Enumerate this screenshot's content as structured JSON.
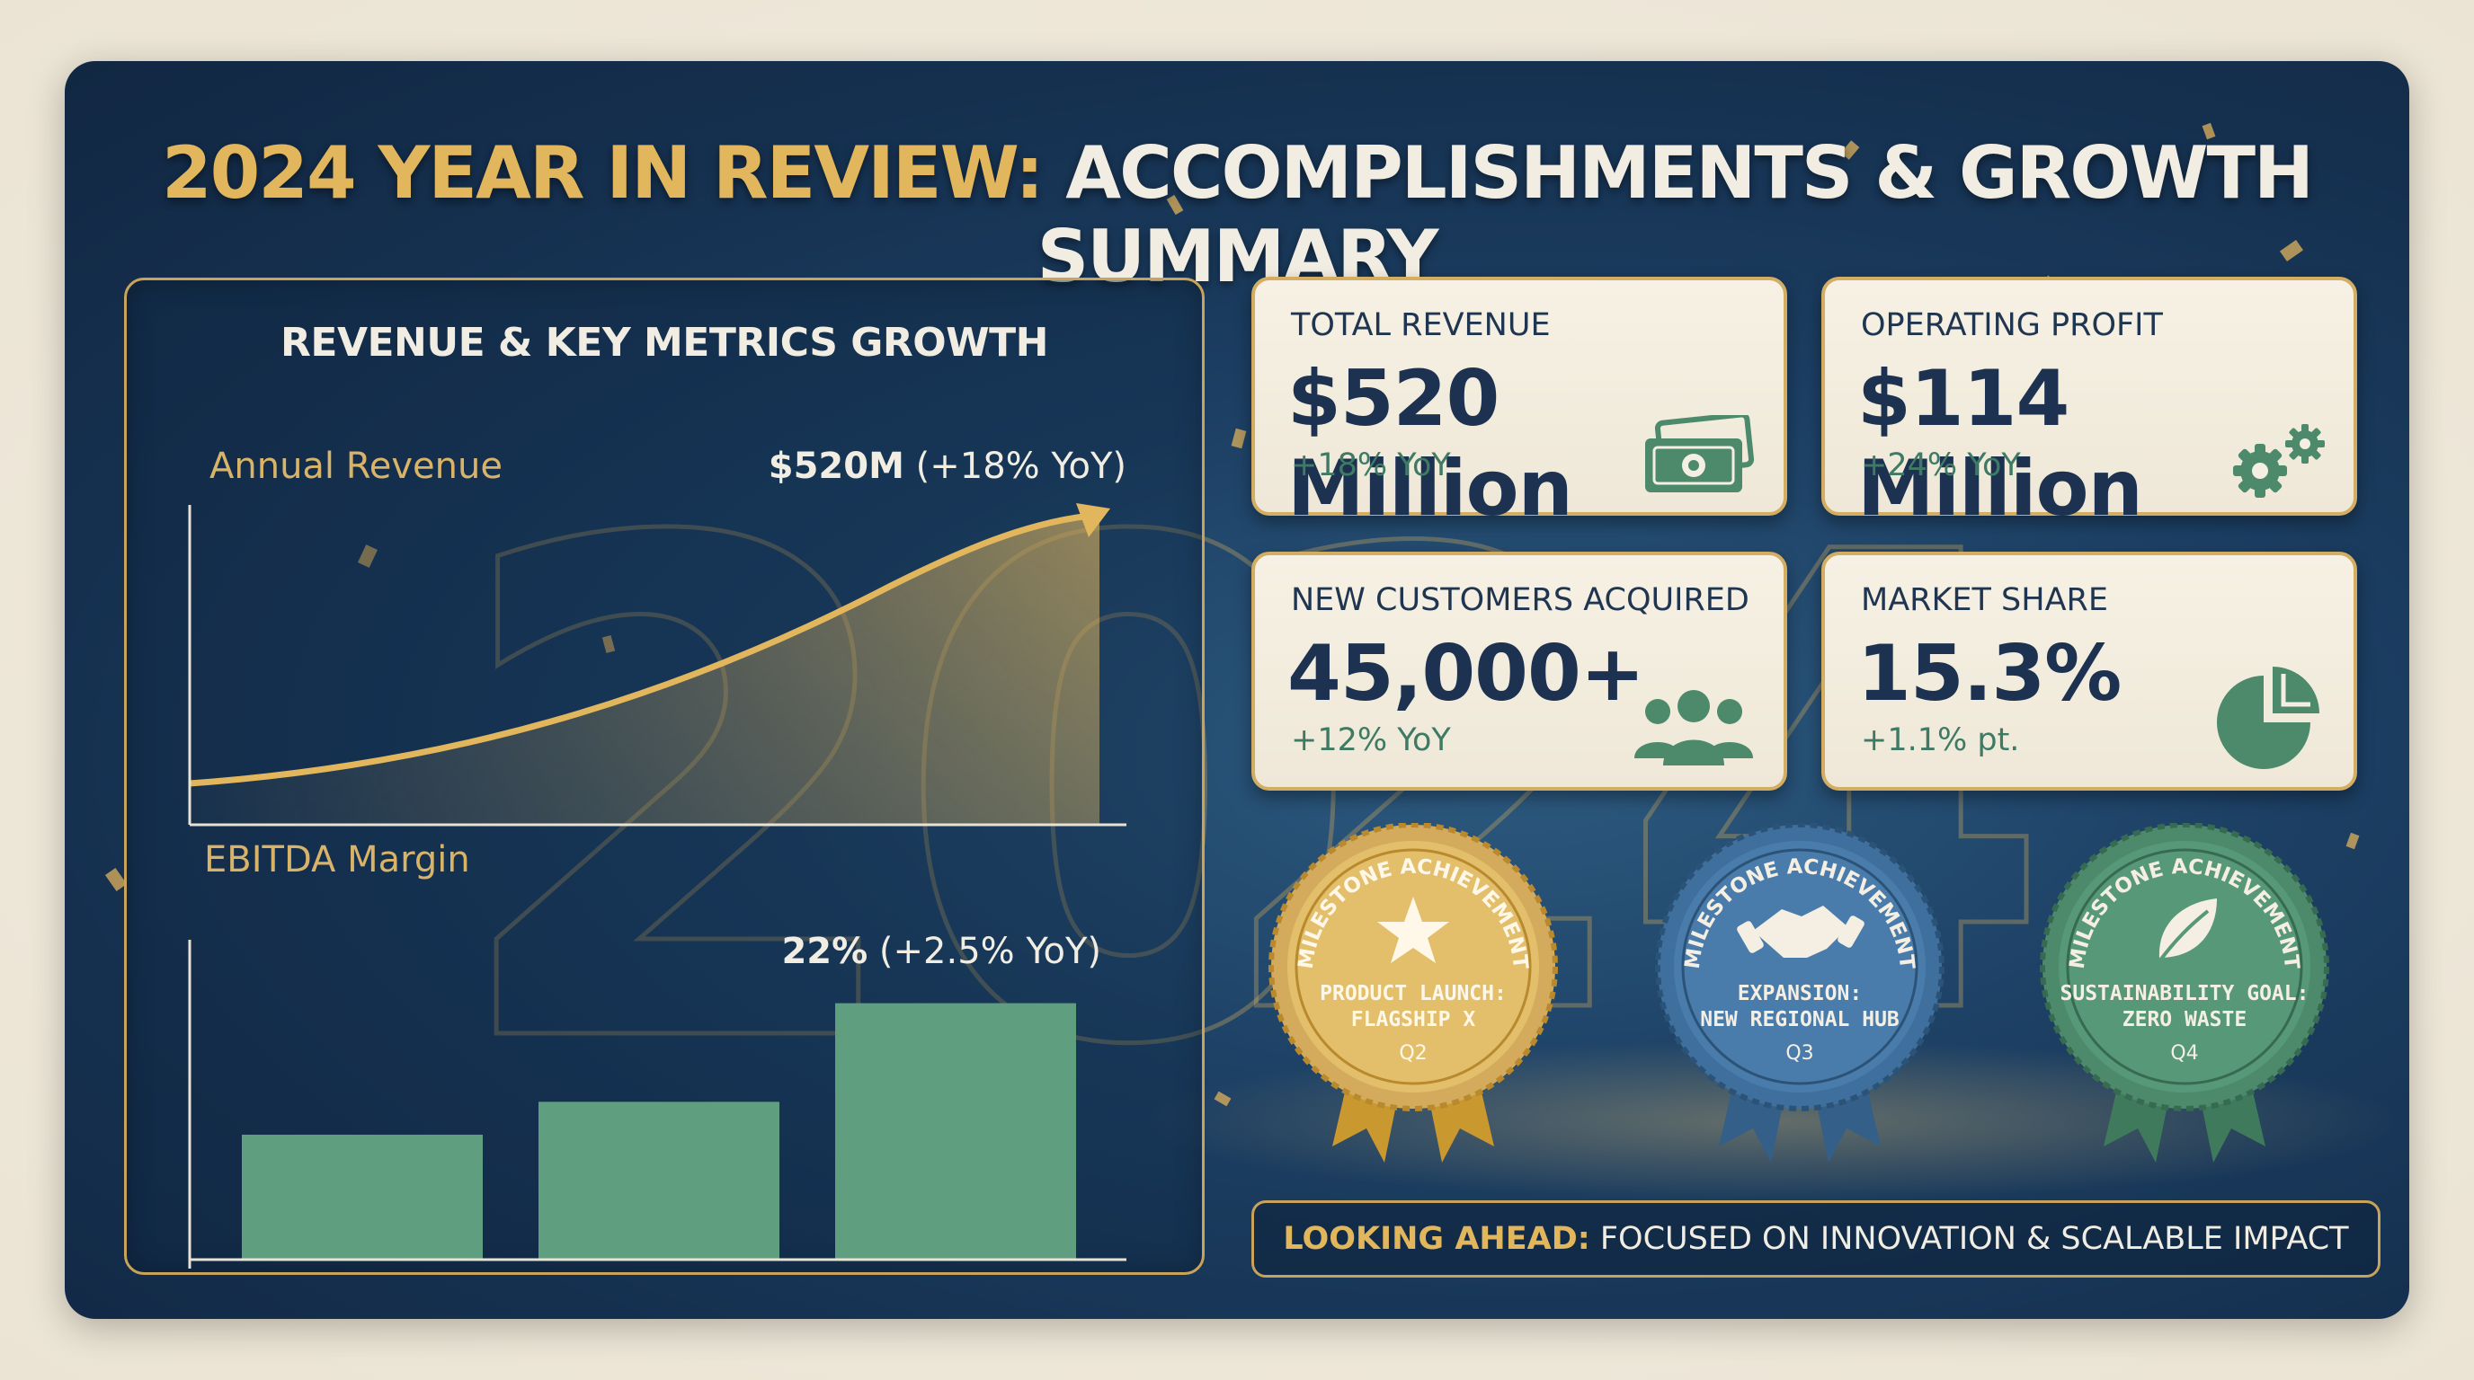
{
  "title": {
    "highlight": "2024 YEAR IN REVIEW:",
    "rest": "ACCOMPLISHMENTS & GROWTH SUMMARY"
  },
  "background_numerals": {
    "left": "20",
    "right": "24"
  },
  "colors": {
    "navy": "#16324f",
    "gold": "#d4ab5c",
    "green": "#5f9e7f",
    "blue": "#3f6f9c",
    "cream": "#f4efe2"
  },
  "chart_data": [
    {
      "type": "area",
      "title": "REVENUE & KEY METRICS GROWTH",
      "label": "Annual Revenue",
      "annotation_bold": "$520M",
      "annotation_rest": "(+18% YoY)",
      "grid": false
    },
    {
      "type": "bar",
      "label": "EBITDA Margin",
      "annotation_bold": "22%",
      "annotation_rest": "(+2.5% YoY)",
      "values": [
        9.5,
        12,
        19.5
      ],
      "ylim": [
        0,
        22
      ],
      "bar_color": "#5f9e7f",
      "grid": false
    }
  ],
  "cards": [
    {
      "label": "TOTAL REVENUE",
      "value": "$520 Million",
      "delta": "+18% YoY",
      "icon": "money-icon"
    },
    {
      "label": "OPERATING PROFIT",
      "value": "$114 Million",
      "delta": "+24% YoY",
      "icon": "gears-icon"
    },
    {
      "label": "NEW CUSTOMERS ACQUIRED",
      "value": "45,000+",
      "delta": "+12% YoY",
      "icon": "users-icon"
    },
    {
      "label": "MARKET SHARE",
      "value": "15.3%",
      "delta": "+1.1% pt.",
      "icon": "pie-chart-icon"
    }
  ],
  "badges": [
    {
      "heading": "MILESTONE ACHIEVEMENT",
      "line1": "PRODUCT LAUNCH:",
      "line2": "FLAGSHIP X",
      "quarter": "Q2",
      "icon": "star-icon",
      "color": "#d4ab5c"
    },
    {
      "heading": "MILESTONE ACHIEVEMENT",
      "line1": "EXPANSION:",
      "line2": "NEW REGIONAL HUB",
      "quarter": "Q3",
      "icon": "handshake-icon",
      "color": "#3f6f9c"
    },
    {
      "heading": "MILESTONE ACHIEVEMENT",
      "line1": "SUSTAINABILITY GOAL:",
      "line2": "ZERO WASTE",
      "quarter": "Q4",
      "icon": "leaf-icon",
      "color": "#4c8a6b"
    }
  ],
  "footer": {
    "highlight": "LOOKING AHEAD:",
    "rest": "FOCUSED ON INNOVATION & SCALABLE IMPACT"
  }
}
